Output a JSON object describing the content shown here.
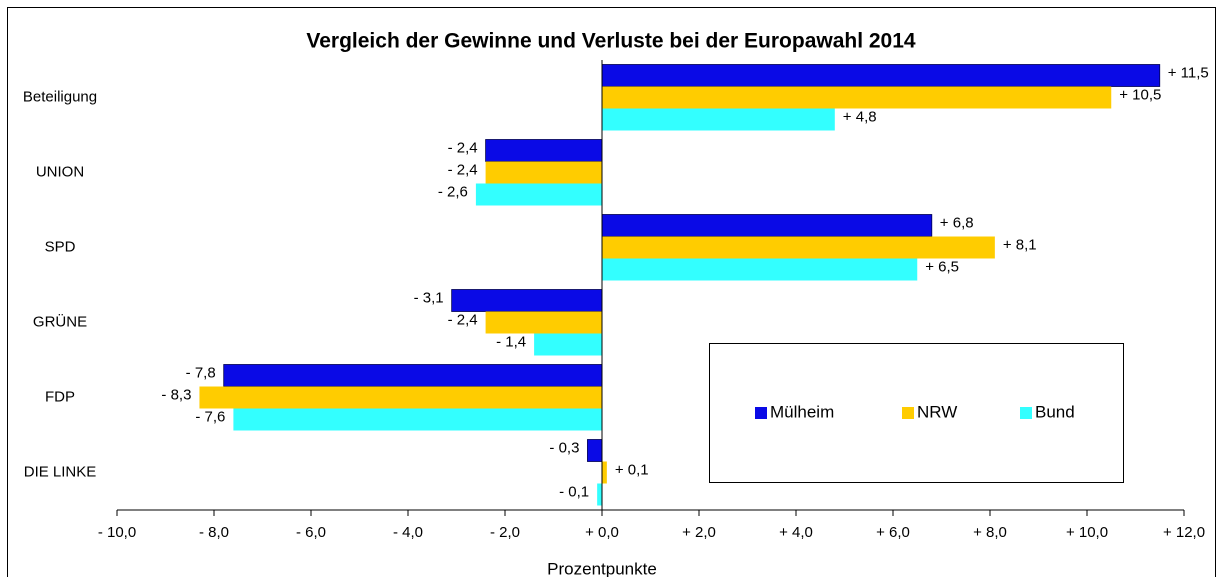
{
  "chart_data": {
    "type": "barh",
    "title": "Vergleich der Gewinne und Verluste bei der Europawahl 2014",
    "x_label": "Prozentpunkte",
    "categories": [
      "Beteiligung",
      "UNION",
      "SPD",
      "GRÜNE",
      "FDP",
      "DIE LINKE"
    ],
    "series": [
      {
        "name": "Mülheim",
        "color": "#0a0ae6",
        "values": [
          11.5,
          -2.4,
          6.8,
          -3.1,
          -7.8,
          -0.3
        ],
        "value_labels": [
          "+ 11,5",
          "- 2,4",
          "+ 6,8",
          "- 3,1",
          "- 7,8",
          "- 0,3"
        ]
      },
      {
        "name": "NRW",
        "color": "#ffcc00",
        "values": [
          10.5,
          -2.4,
          8.1,
          -2.4,
          -8.3,
          0.1
        ],
        "value_labels": [
          "+ 10,5",
          "- 2,4",
          "+ 8,1",
          "- 2,4",
          "- 8,3",
          "+ 0,1"
        ]
      },
      {
        "name": "Bund",
        "color": "#33ffff",
        "values": [
          4.8,
          -2.6,
          6.5,
          -1.4,
          -7.6,
          -0.1
        ],
        "value_labels": [
          "+ 4,8",
          "- 2,6",
          "+ 6,5",
          "- 1,4",
          "- 7,6",
          "- 0,1"
        ]
      }
    ],
    "xlim": [
      -10,
      12
    ],
    "xticks": [
      {
        "value": -10,
        "label": "- 10,0"
      },
      {
        "value": -8,
        "label": "- 8,0"
      },
      {
        "value": -6,
        "label": "- 6,0"
      },
      {
        "value": -4,
        "label": "- 4,0"
      },
      {
        "value": -2,
        "label": "- 2,0"
      },
      {
        "value": 0,
        "label": "+ 0,0"
      },
      {
        "value": 2,
        "label": "+ 2,0"
      },
      {
        "value": 4,
        "label": "+ 4,0"
      },
      {
        "value": 6,
        "label": "+ 6,0"
      },
      {
        "value": 8,
        "label": "+ 8,0"
      },
      {
        "value": 10,
        "label": "+ 10,0"
      },
      {
        "value": 12,
        "label": "+ 12,0"
      }
    ],
    "legend": "lower right",
    "grid": false
  }
}
